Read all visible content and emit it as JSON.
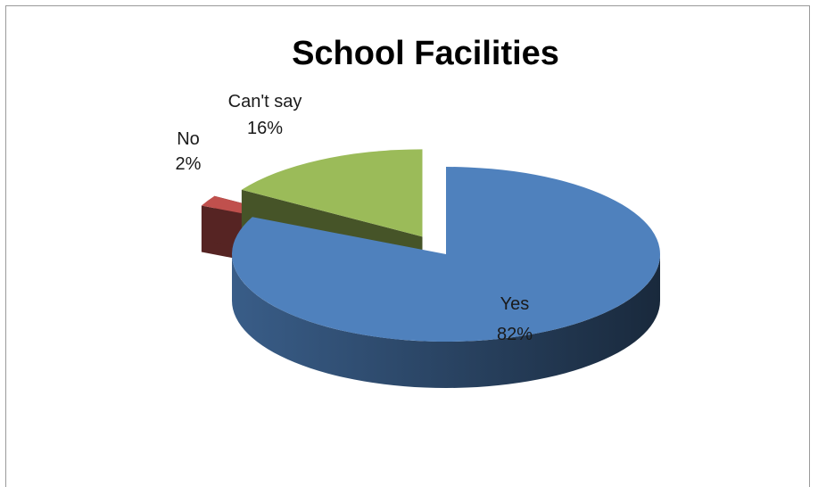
{
  "chart_data": {
    "type": "pie",
    "title": "School Facilities",
    "categories": [
      "Yes",
      "No",
      "Can't say"
    ],
    "values": [
      82,
      2,
      16
    ],
    "value_labels": [
      "82%",
      "2%",
      "16%"
    ],
    "colors": [
      "#4F81BD",
      "#C0504D",
      "#9BBB59"
    ],
    "exploded": [
      "No",
      "Can't say"
    ],
    "legend": "none",
    "style": "3d"
  }
}
